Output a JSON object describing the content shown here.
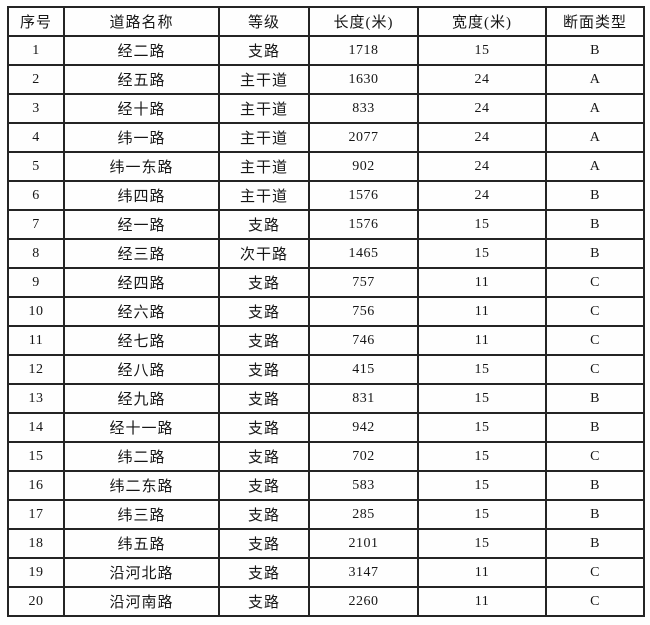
{
  "table": {
    "columns": [
      "序号",
      "道路名称",
      "等级",
      "长度(米)",
      "宽度(米)",
      "断面类型"
    ],
    "rows": [
      [
        "1",
        "经二路",
        "支路",
        "1718",
        "15",
        "B"
      ],
      [
        "2",
        "经五路",
        "主干道",
        "1630",
        "24",
        "A"
      ],
      [
        "3",
        "经十路",
        "主干道",
        "833",
        "24",
        "A"
      ],
      [
        "4",
        "纬一路",
        "主干道",
        "2077",
        "24",
        "A"
      ],
      [
        "5",
        "纬一东路",
        "主干道",
        "902",
        "24",
        "A"
      ],
      [
        "6",
        "纬四路",
        "主干道",
        "1576",
        "24",
        "B"
      ],
      [
        "7",
        "经一路",
        "支路",
        "1576",
        "15",
        "B"
      ],
      [
        "8",
        "经三路",
        "次干路",
        "1465",
        "15",
        "B"
      ],
      [
        "9",
        "经四路",
        "支路",
        "757",
        "11",
        "C"
      ],
      [
        "10",
        "经六路",
        "支路",
        "756",
        "11",
        "C"
      ],
      [
        "11",
        "经七路",
        "支路",
        "746",
        "11",
        "C"
      ],
      [
        "12",
        "经八路",
        "支路",
        "415",
        "15",
        "C"
      ],
      [
        "13",
        "经九路",
        "支路",
        "831",
        "15",
        "B"
      ],
      [
        "14",
        "经十一路",
        "支路",
        "942",
        "15",
        "B"
      ],
      [
        "15",
        "纬二路",
        "支路",
        "702",
        "15",
        "C"
      ],
      [
        "16",
        "纬二东路",
        "支路",
        "583",
        "15",
        "B"
      ],
      [
        "17",
        "纬三路",
        "支路",
        "285",
        "15",
        "B"
      ],
      [
        "18",
        "纬五路",
        "支路",
        "2101",
        "15",
        "B"
      ],
      [
        "19",
        "沿河北路",
        "支路",
        "3147",
        "11",
        "C"
      ],
      [
        "20",
        "沿河南路",
        "支路",
        "2260",
        "11",
        "C"
      ]
    ],
    "numeric_columns": [
      0,
      3,
      4,
      5
    ]
  },
  "colors": {
    "border": "#242424",
    "text": "#161616",
    "background": "#ffffff"
  }
}
